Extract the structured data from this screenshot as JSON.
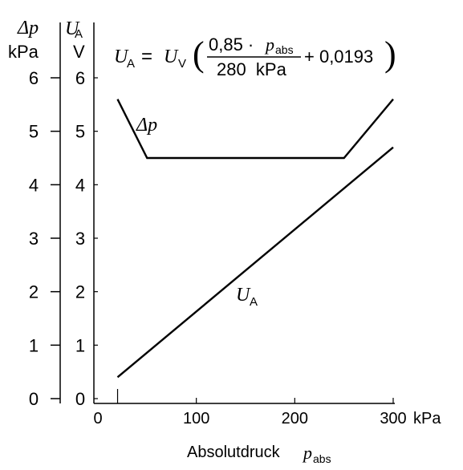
{
  "chart_data": {
    "type": "line",
    "formula": {
      "lhs_symbol": "U",
      "lhs_sub": "A",
      "equals": "=",
      "rhs_symbol": "U",
      "rhs_sub": "V",
      "numerator_coef": "0,85 ·",
      "numerator_var": "p",
      "numerator_var_sub": "abs",
      "denominator": "280  kPa",
      "addend": "+ 0,0193"
    },
    "xaxis": {
      "label_text": "Absolutdruck",
      "label_var": "p",
      "label_sub": "abs",
      "unit": "kPa",
      "range": [
        0,
        300
      ],
      "ticks": [
        {
          "value": 0,
          "label": "0"
        },
        {
          "value": 100,
          "label": "100"
        },
        {
          "value": 200,
          "label": "200"
        },
        {
          "value": 300,
          "label": "300"
        }
      ]
    },
    "yaxis_left": {
      "symbol": "Δp",
      "unit": "kPa",
      "range": [
        0,
        6
      ],
      "ticks": [
        {
          "value": 0,
          "label": "0"
        },
        {
          "value": 1,
          "label": "1"
        },
        {
          "value": 2,
          "label": "2"
        },
        {
          "value": 3,
          "label": "3"
        },
        {
          "value": 4,
          "label": "4"
        },
        {
          "value": 5,
          "label": "5"
        },
        {
          "value": 6,
          "label": "6"
        }
      ]
    },
    "yaxis_right": {
      "symbol": "U",
      "symbol_sub": "A",
      "unit": "V",
      "range": [
        0,
        6
      ],
      "ticks": [
        {
          "value": 0,
          "label": "0"
        },
        {
          "value": 1,
          "label": "1"
        },
        {
          "value": 2,
          "label": "2"
        },
        {
          "value": 3,
          "label": "3"
        },
        {
          "value": 4,
          "label": "4"
        },
        {
          "value": 5,
          "label": "5"
        },
        {
          "value": 6,
          "label": "6"
        }
      ]
    },
    "series": [
      {
        "name": "Δp",
        "label_var": "Δp",
        "axis": "left",
        "points": [
          [
            20,
            5.6
          ],
          [
            50,
            4.5
          ],
          [
            250,
            4.5
          ],
          [
            300,
            5.6
          ]
        ]
      },
      {
        "name": "U_A",
        "label_var": "U",
        "label_sub": "A",
        "axis": "right",
        "points": [
          [
            20,
            0.4
          ],
          [
            300,
            4.7
          ]
        ]
      }
    ],
    "grid": false,
    "color": "#000000"
  }
}
